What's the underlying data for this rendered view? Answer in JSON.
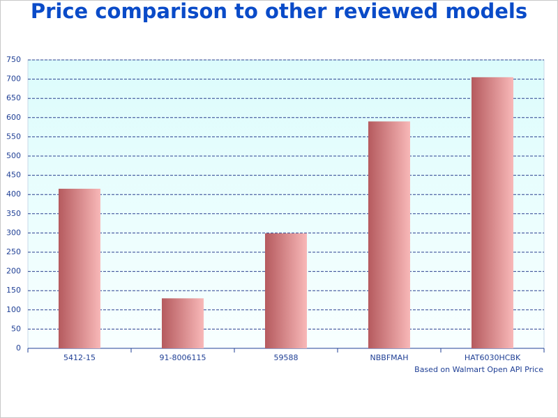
{
  "chart_data": {
    "type": "bar",
    "title": "Price comparison to other reviewed models",
    "note": "Based on Walmart Open API Price",
    "categories": [
      "5412-15",
      "91-8006115",
      "59588",
      "NBBFMAH",
      "HAT6030HCBK"
    ],
    "values": [
      415,
      130,
      299,
      590,
      705
    ],
    "ylim": [
      0,
      750
    ],
    "yticks": [
      0,
      50,
      100,
      150,
      200,
      250,
      300,
      350,
      400,
      450,
      500,
      550,
      600,
      650,
      700,
      750
    ],
    "grid": true
  }
}
